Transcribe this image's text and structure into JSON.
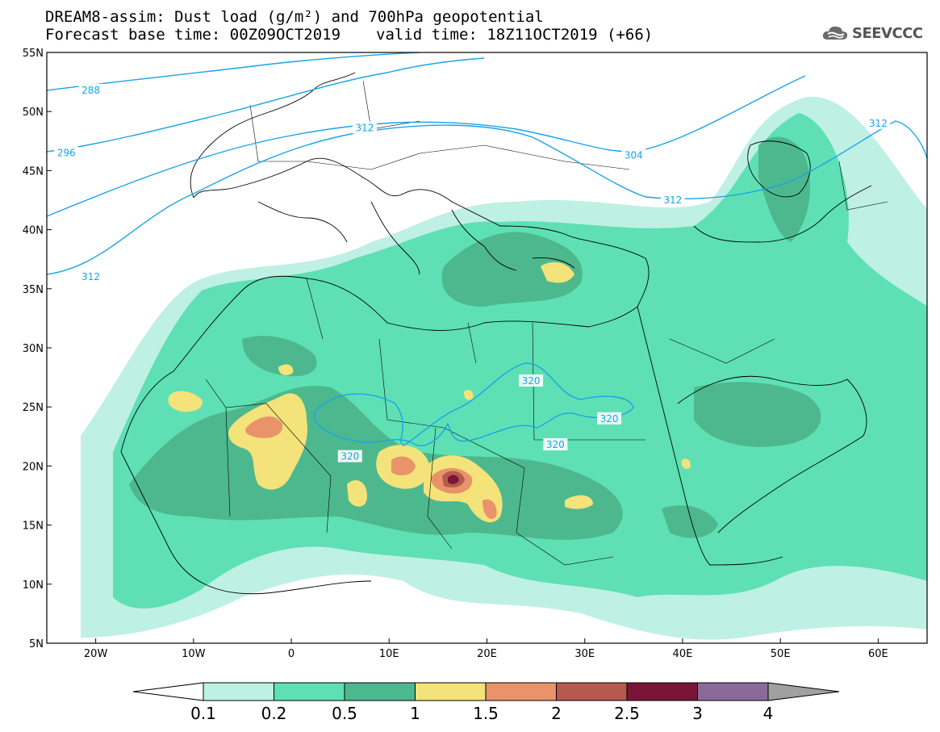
{
  "title_line1": "DREAM8-assim: Dust load (g/m²) and 700hPa geopotential",
  "base_time_label": "Forecast base time: 00Z09OCT2019",
  "valid_time_label": "valid time: 18Z11OCT2019 (+66)",
  "logo_text": "SEEVCCC",
  "logo_icon": "cloud-icon",
  "map": {
    "lon_range": [
      -25,
      65
    ],
    "lat_range": [
      5,
      55
    ],
    "lat_ticks": [
      "55N",
      "50N",
      "45N",
      "40N",
      "35N",
      "30N",
      "25N",
      "20N",
      "15N",
      "10N",
      "5N"
    ],
    "lon_ticks": [
      "20W",
      "10W",
      "0",
      "10E",
      "20E",
      "30E",
      "40E",
      "50E",
      "60E"
    ],
    "contour_color": "#1aa3e8",
    "contour_labels": [
      {
        "text": "288",
        "lon": -20.5,
        "lat": 51.8
      },
      {
        "text": "296",
        "lon": -23.0,
        "lat": 46.5
      },
      {
        "text": "312",
        "lon": -20.5,
        "lat": 36.0
      },
      {
        "text": "312",
        "lon": 7.5,
        "lat": 48.6
      },
      {
        "text": "304",
        "lon": 35.0,
        "lat": 46.3
      },
      {
        "text": "312",
        "lon": 39.0,
        "lat": 42.5
      },
      {
        "text": "312",
        "lon": 60.0,
        "lat": 49.0
      },
      {
        "text": "320",
        "lon": 24.5,
        "lat": 27.2
      },
      {
        "text": "320",
        "lon": 32.5,
        "lat": 24.0
      },
      {
        "text": "320",
        "lon": 27.0,
        "lat": 21.8
      },
      {
        "text": "320",
        "lon": 6.0,
        "lat": 20.8
      }
    ]
  },
  "colorbar": {
    "labels": [
      "0.1",
      "0.2",
      "0.5",
      "1",
      "1.5",
      "2",
      "2.5",
      "3",
      "4"
    ],
    "colors": [
      "#bff0e4",
      "#5ee0b4",
      "#4db88e",
      "#f4e27a",
      "#e8936a",
      "#b55a4c",
      "#7a1538",
      "#8a6a9a"
    ],
    "low_color": "#ffffff",
    "high_color": "#a0a0a0"
  }
}
